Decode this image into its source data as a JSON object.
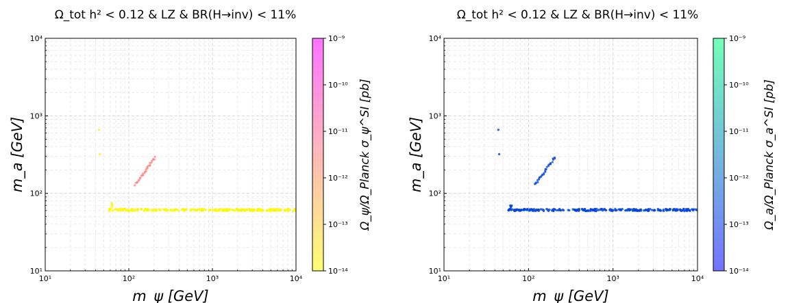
{
  "chart_data": [
    {
      "type": "scatter",
      "title": "Ω_tot h² < 0.12 & LZ & BR(H→inv) < 11%",
      "xlabel": "m_ψ [GeV]",
      "ylabel": "m_a [GeV]",
      "xscale": "log",
      "yscale": "log",
      "xlim": [
        10,
        10000
      ],
      "ylim": [
        10,
        10000
      ],
      "x_ticks": [
        "10¹",
        "10²",
        "10³",
        "10⁴"
      ],
      "y_ticks": [
        "10¹",
        "10²",
        "10³",
        "10⁴"
      ],
      "grid": true,
      "colorbar": {
        "label": "Ω_ψ/Ω_Planck σ_ψ^SI [pb]",
        "scale": "log",
        "range": [
          1e-14,
          1e-09
        ],
        "ticks": [
          "10⁻¹⁴",
          "10⁻¹³",
          "10⁻¹²",
          "10⁻¹¹",
          "10⁻¹⁰",
          "10⁻⁹"
        ],
        "colormap": "spring (yellow → magenta)"
      },
      "colors": {
        "low": "#ffff00",
        "high": "#ff00ff"
      },
      "clusters": [
        {
          "desc": "low point",
          "x": 44,
          "y": 660,
          "z": 2e-14
        },
        {
          "desc": "low point",
          "x": 45,
          "y": 320,
          "z": 2e-14
        },
        {
          "desc": "diagonal band",
          "x_range": [
            120,
            205
          ],
          "y_range": [
            130,
            290
          ],
          "z": 3e-12
        },
        {
          "desc": "horizontal band",
          "x_range": [
            58,
            10000
          ],
          "y": 61,
          "z": 1.5e-14
        }
      ]
    },
    {
      "type": "scatter",
      "title": "Ω_tot h² < 0.12 & LZ & BR(H→inv) < 11%",
      "xlabel": "m_ψ [GeV]",
      "ylabel": "m_a [GeV]",
      "xscale": "log",
      "yscale": "log",
      "xlim": [
        10,
        10000
      ],
      "ylim": [
        10,
        10000
      ],
      "x_ticks": [
        "10¹",
        "10²",
        "10³",
        "10⁴"
      ],
      "y_ticks": [
        "10¹",
        "10²",
        "10³",
        "10⁴"
      ],
      "grid": true,
      "colorbar": {
        "label": "Ω_a/Ω_Planck σ_a^SI [pb]",
        "scale": "log",
        "range": [
          1e-14,
          1e-09
        ],
        "ticks": [
          "10⁻¹⁴",
          "10⁻¹³",
          "10⁻¹²",
          "10⁻¹¹",
          "10⁻¹⁰",
          "10⁻⁹"
        ],
        "colormap": "winter (blue → green)"
      },
      "colors": {
        "low": "#0000ff",
        "high": "#00ff80"
      },
      "clusters": [
        {
          "desc": "low point",
          "x": 44,
          "y": 660,
          "z": 2e-13
        },
        {
          "desc": "low point",
          "x": 45,
          "y": 320,
          "z": 2e-13
        },
        {
          "desc": "diagonal band",
          "x_range": [
            120,
            205
          ],
          "y_range": [
            130,
            290
          ],
          "z": 2e-13
        },
        {
          "desc": "horizontal band",
          "x_range": [
            58,
            10000
          ],
          "y": 61,
          "z": 2e-13
        }
      ]
    }
  ]
}
